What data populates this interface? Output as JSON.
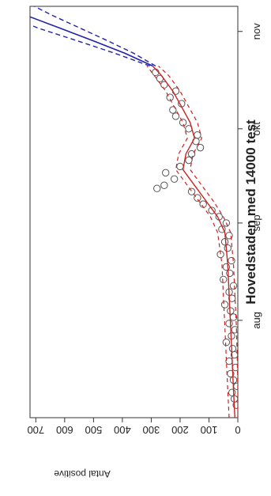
{
  "chart_data": {
    "type": "line",
    "title": "Hovedstaden med 14000 test",
    "ylabel": "Antal positive",
    "xlabel": "",
    "orientation": "rotated-90-clockwise",
    "grid": false,
    "y_ticks": [
      0,
      100,
      200,
      300,
      400,
      500,
      600,
      700
    ],
    "y_tick_labels": [
      "0",
      "100",
      "200",
      "300",
      "400",
      "500",
      "600",
      "700"
    ],
    "ylim": [
      0,
      720
    ],
    "xlim": [
      "2020-07-01",
      "2020-11-09"
    ],
    "x_ticks": [
      "2020-08-01",
      "2020-09-01",
      "2020-10-01",
      "2020-11-01"
    ],
    "x_tick_labels": [
      "aug",
      "sep",
      "okt",
      "nov"
    ],
    "colors": {
      "observed": "#555555",
      "model": "#cc2222",
      "forecast": "#2222aa",
      "frame": "#333333"
    },
    "observed_points": {
      "x": [
        "2020-07-05",
        "2020-07-07",
        "2020-07-09",
        "2020-07-11",
        "2020-07-13",
        "2020-07-15",
        "2020-07-17",
        "2020-07-19",
        "2020-07-21",
        "2020-07-23",
        "2020-07-25",
        "2020-07-27",
        "2020-07-29",
        "2020-07-31",
        "2020-08-02",
        "2020-08-04",
        "2020-08-06",
        "2020-08-08",
        "2020-08-10",
        "2020-08-12",
        "2020-08-14",
        "2020-08-16",
        "2020-08-18",
        "2020-08-20",
        "2020-08-22",
        "2020-08-24",
        "2020-08-26",
        "2020-08-28",
        "2020-08-30",
        "2020-09-01",
        "2020-09-03",
        "2020-09-05",
        "2020-09-07",
        "2020-09-09",
        "2020-09-11",
        "2020-09-12",
        "2020-09-13",
        "2020-09-15",
        "2020-09-17",
        "2020-09-19",
        "2020-09-21",
        "2020-09-23",
        "2020-09-25",
        "2020-09-27",
        "2020-09-29",
        "2020-10-01",
        "2020-10-03",
        "2020-10-05",
        "2020-10-07",
        "2020-10-09",
        "2020-10-11",
        "2020-10-13",
        "2020-10-15",
        "2020-10-17",
        "2020-10-19"
      ],
      "y": [
        5,
        12,
        20,
        3,
        15,
        25,
        8,
        30,
        12,
        18,
        40,
        22,
        10,
        30,
        15,
        25,
        45,
        20,
        30,
        15,
        50,
        28,
        40,
        22,
        60,
        35,
        45,
        30,
        55,
        40,
        65,
        90,
        120,
        140,
        160,
        280,
        255,
        220,
        250,
        200,
        170,
        160,
        130,
        145,
        140,
        170,
        190,
        215,
        225,
        195,
        235,
        215,
        255,
        270,
        285
      ]
    },
    "series": [
      {
        "values": [
          [
            "2020-07-01",
            10
          ],
          [
            "2020-07-10",
            15
          ],
          [
            "2020-07-20",
            20
          ],
          [
            "2020-07-30",
            25
          ],
          [
            "2020-08-09",
            30
          ],
          [
            "2020-08-19",
            35
          ],
          [
            "2020-08-29",
            45
          ],
          [
            "2020-09-03",
            70
          ],
          [
            "2020-09-08",
            110
          ],
          [
            "2020-09-13",
            150
          ],
          [
            "2020-09-18",
            190
          ],
          [
            "2020-09-23",
            180
          ],
          [
            "2020-09-28",
            150
          ],
          [
            "2020-10-03",
            165
          ],
          [
            "2020-10-08",
            195
          ],
          [
            "2020-10-13",
            225
          ],
          [
            "2020-10-18",
            265
          ],
          [
            "2020-10-21",
            295
          ]
        ]
      },
      {
        "values": [
          [
            "2020-07-01",
            30
          ],
          [
            "2020-07-10",
            35
          ],
          [
            "2020-07-20",
            40
          ],
          [
            "2020-07-30",
            45
          ],
          [
            "2020-08-09",
            50
          ],
          [
            "2020-08-19",
            55
          ],
          [
            "2020-08-29",
            70
          ],
          [
            "2020-09-03",
            95
          ],
          [
            "2020-09-08",
            135
          ],
          [
            "2020-09-13",
            175
          ],
          [
            "2020-09-18",
            215
          ],
          [
            "2020-09-23",
            205
          ],
          [
            "2020-09-28",
            175
          ],
          [
            "2020-10-03",
            190
          ],
          [
            "2020-10-08",
            220
          ],
          [
            "2020-10-13",
            250
          ],
          [
            "2020-10-18",
            290
          ],
          [
            "2020-10-21",
            315
          ]
        ]
      },
      {
        "values": [
          [
            "2020-07-01",
            0
          ],
          [
            "2020-07-10",
            0
          ],
          [
            "2020-07-20",
            2
          ],
          [
            "2020-07-30",
            5
          ],
          [
            "2020-08-09",
            10
          ],
          [
            "2020-08-19",
            15
          ],
          [
            "2020-08-29",
            25
          ],
          [
            "2020-09-03",
            50
          ],
          [
            "2020-09-08",
            85
          ],
          [
            "2020-09-13",
            125
          ],
          [
            "2020-09-18",
            165
          ],
          [
            "2020-09-23",
            155
          ],
          [
            "2020-09-28",
            125
          ],
          [
            "2020-10-03",
            140
          ],
          [
            "2020-10-08",
            170
          ],
          [
            "2020-10-13",
            200
          ],
          [
            "2020-10-18",
            240
          ],
          [
            "2020-10-21",
            275
          ]
        ]
      },
      {
        "values": [
          [
            "2020-10-21",
            295
          ],
          [
            "2020-10-25",
            390
          ],
          [
            "2020-10-29",
            500
          ],
          [
            "2020-11-02",
            615
          ],
          [
            "2020-11-06",
            730
          ]
        ]
      },
      {
        "values": [
          [
            "2020-10-21",
            305
          ],
          [
            "2020-10-25",
            425
          ],
          [
            "2020-10-29",
            555
          ],
          [
            "2020-11-02",
            690
          ],
          [
            "2020-11-05",
            770
          ]
        ]
      },
      {
        "values": [
          [
            "2020-10-21",
            285
          ],
          [
            "2020-10-25",
            360
          ],
          [
            "2020-10-29",
            450
          ],
          [
            "2020-11-02",
            545
          ],
          [
            "2020-11-06",
            640
          ],
          [
            "2020-11-09",
            705
          ]
        ]
      }
    ],
    "series_style": [
      "solid-red",
      "dashed-red",
      "dashed-red",
      "solid-blue",
      "dashed-blue",
      "dashed-blue"
    ]
  }
}
